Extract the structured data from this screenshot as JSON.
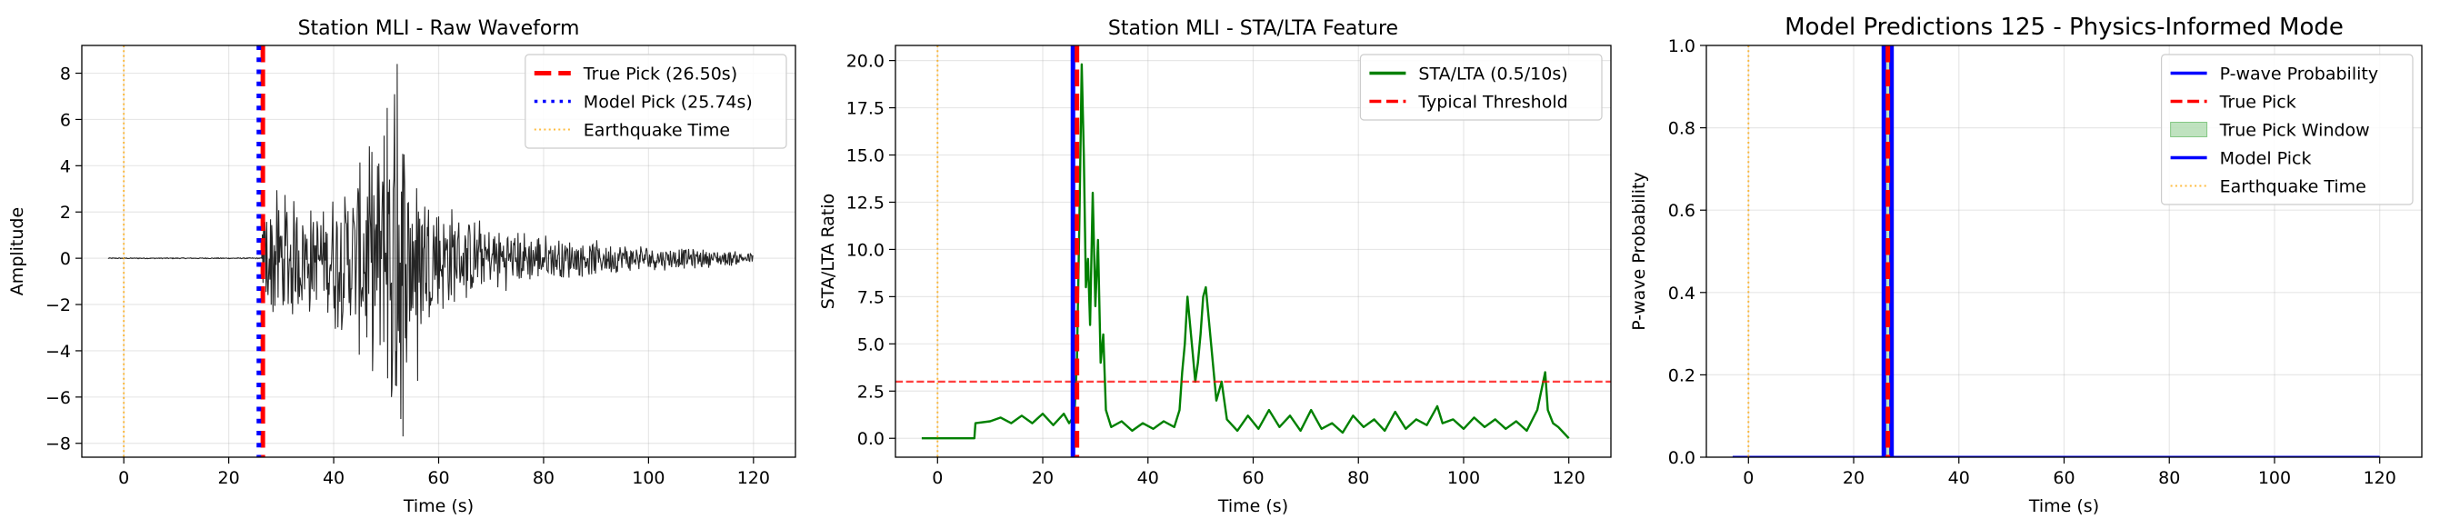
{
  "chart_data": [
    {
      "type": "line",
      "title": "Station MLI - Raw Waveform",
      "xlabel": "Time (s)",
      "ylabel": "Amplitude",
      "xlim": [
        -8,
        128
      ],
      "ylim": [
        -8.6,
        9.2
      ],
      "xticks": [
        0,
        20,
        40,
        60,
        80,
        100,
        120
      ],
      "yticks": [
        -8,
        -6,
        -4,
        -2,
        0,
        2,
        4,
        6,
        8
      ],
      "grid": true,
      "legend_position": "top-right",
      "legend": [
        {
          "label": "True Pick (26.50s)",
          "color": "#ff0000",
          "style": "dashed"
        },
        {
          "label": "Model Pick (25.74s)",
          "color": "#0000ff",
          "style": "dotted"
        },
        {
          "label": "Earthquake Time",
          "color": "#ffa500",
          "style": "dotted"
        }
      ],
      "vlines": [
        {
          "x": 26.5,
          "color": "#ff0000",
          "style": "dashed"
        },
        {
          "x": 25.74,
          "color": "#0000ff",
          "style": "dotted"
        },
        {
          "x": 0,
          "color": "#ffa500",
          "style": "dotted"
        }
      ],
      "waveform": {
        "color": "#000000",
        "x_start": -3,
        "x_end": 120,
        "onset": 26.3,
        "peak_time": 52,
        "envelope": [
          [
            26.3,
            2.0
          ],
          [
            28,
            3.3
          ],
          [
            30,
            3.3
          ],
          [
            32,
            2.8
          ],
          [
            34,
            3.0
          ],
          [
            36,
            2.5
          ],
          [
            38,
            2.2
          ],
          [
            40,
            3.3
          ],
          [
            42,
            3.4
          ],
          [
            44,
            4.0
          ],
          [
            46,
            5.3
          ],
          [
            48,
            5.0
          ],
          [
            50,
            6.5
          ],
          [
            52,
            8.4
          ],
          [
            54,
            6.0
          ],
          [
            56,
            4.2
          ],
          [
            58,
            3.5
          ],
          [
            60,
            3.0
          ],
          [
            65,
            2.0
          ],
          [
            70,
            1.6
          ],
          [
            80,
            1.1
          ],
          [
            90,
            0.8
          ],
          [
            100,
            0.6
          ],
          [
            110,
            0.45
          ],
          [
            120,
            0.3
          ]
        ],
        "spikes": [
          [
            51.8,
            -5.5
          ],
          [
            52.1,
            8.4
          ],
          [
            53.2,
            -7.7
          ],
          [
            49.6,
            5.3
          ],
          [
            50.2,
            6.5
          ],
          [
            51.0,
            -6.0
          ],
          [
            56.0,
            -5.3
          ]
        ]
      }
    },
    {
      "type": "line",
      "title": "Station MLI - STA/LTA Feature",
      "xlabel": "Time (s)",
      "ylabel": "STA/LTA Ratio",
      "xlim": [
        -8,
        128
      ],
      "ylim": [
        -1,
        20.8
      ],
      "xticks": [
        0,
        20,
        40,
        60,
        80,
        100,
        120
      ],
      "yticks": [
        0.0,
        2.5,
        5.0,
        7.5,
        10.0,
        12.5,
        15.0,
        17.5,
        20.0
      ],
      "ytick_labels": [
        "0.0",
        "2.5",
        "5.0",
        "7.5",
        "10.0",
        "12.5",
        "15.0",
        "17.5",
        "20.0"
      ],
      "grid": true,
      "legend_position": "top-right",
      "legend": [
        {
          "label": "STA/LTA (0.5/10s)",
          "color": "#008000",
          "style": "solid"
        },
        {
          "label": "Typical Threshold",
          "color": "#ff0000",
          "style": "dashed"
        }
      ],
      "hlines": [
        {
          "y": 3.0,
          "color": "#ff0000",
          "style": "dashed"
        }
      ],
      "vlines": [
        {
          "x": 0,
          "color": "#ffa500",
          "style": "dotted"
        },
        {
          "x": 25.74,
          "color": "#0000ff",
          "style": "solid"
        },
        {
          "x": 26.5,
          "color": "#ff0000",
          "style": "dashed"
        }
      ],
      "series": [
        {
          "color": "#008000",
          "points": [
            [
              -3,
              0.0
            ],
            [
              7,
              0.0
            ],
            [
              7.2,
              0.8
            ],
            [
              10,
              0.9
            ],
            [
              12,
              1.1
            ],
            [
              14,
              0.8
            ],
            [
              16,
              1.2
            ],
            [
              18,
              0.8
            ],
            [
              20,
              1.3
            ],
            [
              22,
              0.7
            ],
            [
              24,
              1.3
            ],
            [
              25,
              0.8
            ],
            [
              26,
              1.2
            ],
            [
              26.5,
              4.0
            ],
            [
              27,
              12.0
            ],
            [
              27.4,
              19.8
            ],
            [
              27.8,
              15.0
            ],
            [
              28.2,
              8.0
            ],
            [
              28.6,
              9.5
            ],
            [
              29,
              6.0
            ],
            [
              29.5,
              13.0
            ],
            [
              30,
              7.0
            ],
            [
              30.5,
              10.5
            ],
            [
              31,
              4.0
            ],
            [
              31.5,
              5.5
            ],
            [
              32,
              1.5
            ],
            [
              33,
              0.6
            ],
            [
              35,
              0.9
            ],
            [
              37,
              0.4
            ],
            [
              39,
              0.8
            ],
            [
              41,
              0.5
            ],
            [
              43,
              0.9
            ],
            [
              45,
              0.6
            ],
            [
              46,
              1.5
            ],
            [
              46.5,
              3.5
            ],
            [
              47,
              5.0
            ],
            [
              47.5,
              7.5
            ],
            [
              48,
              6.0
            ],
            [
              48.5,
              4.5
            ],
            [
              49,
              3.0
            ],
            [
              49.5,
              4.0
            ],
            [
              50,
              5.5
            ],
            [
              50.5,
              7.5
            ],
            [
              51,
              8.0
            ],
            [
              51.5,
              6.5
            ],
            [
              52,
              5.0
            ],
            [
              52.5,
              3.5
            ],
            [
              53,
              2.0
            ],
            [
              54,
              3.0
            ],
            [
              55,
              1.0
            ],
            [
              57,
              0.4
            ],
            [
              59,
              1.2
            ],
            [
              61,
              0.5
            ],
            [
              63,
              1.5
            ],
            [
              65,
              0.6
            ],
            [
              67,
              1.2
            ],
            [
              69,
              0.4
            ],
            [
              71,
              1.5
            ],
            [
              73,
              0.5
            ],
            [
              75,
              0.8
            ],
            [
              77,
              0.3
            ],
            [
              79,
              1.2
            ],
            [
              81,
              0.6
            ],
            [
              83,
              1.0
            ],
            [
              85,
              0.4
            ],
            [
              87,
              1.4
            ],
            [
              89,
              0.5
            ],
            [
              91,
              1.0
            ],
            [
              93,
              0.7
            ],
            [
              95,
              1.7
            ],
            [
              96,
              0.8
            ],
            [
              98,
              1.0
            ],
            [
              100,
              0.5
            ],
            [
              102,
              1.1
            ],
            [
              104,
              0.6
            ],
            [
              106,
              1.0
            ],
            [
              108,
              0.5
            ],
            [
              110,
              0.9
            ],
            [
              112,
              0.4
            ],
            [
              114,
              1.5
            ],
            [
              115.5,
              3.5
            ],
            [
              116,
              1.5
            ],
            [
              117,
              0.8
            ],
            [
              118,
              0.6
            ],
            [
              119,
              0.3
            ],
            [
              120,
              0.0
            ]
          ]
        }
      ]
    },
    {
      "type": "line",
      "title": "Model Predictions 125 - Physics-Informed Mode",
      "xlabel": "Time (s)",
      "ylabel": "P-wave Probability",
      "xlim": [
        -8,
        128
      ],
      "ylim": [
        0.0,
        1.0
      ],
      "xticks": [
        0,
        20,
        40,
        60,
        80,
        100,
        120
      ],
      "yticks": [
        0.0,
        0.2,
        0.4,
        0.6,
        0.8,
        1.0
      ],
      "ytick_labels": [
        "0.0",
        "0.2",
        "0.4",
        "0.6",
        "0.8",
        "1.0"
      ],
      "grid": true,
      "legend_position": "top-right",
      "legend": [
        {
          "label": "P-wave Probability",
          "color": "#0000ff",
          "style": "solid"
        },
        {
          "label": "True Pick",
          "color": "#ff0000",
          "style": "dashed"
        },
        {
          "label": "True Pick Window",
          "color": "#2ca02c",
          "style": "patch"
        },
        {
          "label": "Model Pick",
          "color": "#0000ff",
          "style": "solid"
        },
        {
          "label": "Earthquake Time",
          "color": "#ffa500",
          "style": "dotted"
        }
      ],
      "window": [
        25.5,
        27.5
      ],
      "vlines": [
        {
          "x": 0,
          "color": "#ffa500",
          "style": "dotted"
        },
        {
          "x": 25.74,
          "color": "#0000ff",
          "style": "solid"
        },
        {
          "x": 27.2,
          "color": "#0000ff",
          "style": "solid"
        },
        {
          "x": 26.5,
          "color": "#ff0000",
          "style": "dashed"
        }
      ],
      "series": [
        {
          "color": "#0000ff",
          "points": [
            [
              -3,
              0.0
            ],
            [
              120,
              0.0
            ]
          ]
        }
      ]
    }
  ]
}
